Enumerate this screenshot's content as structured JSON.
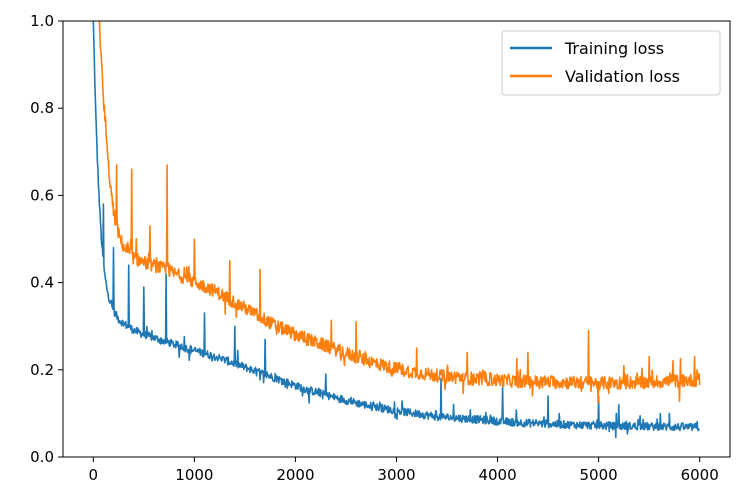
{
  "chart_data": {
    "type": "line",
    "title": "",
    "xlabel": "",
    "ylabel": "",
    "xlim": [
      -300,
      6300
    ],
    "ylim": [
      0.0,
      1.0
    ],
    "xticks": [
      0,
      1000,
      2000,
      3000,
      4000,
      5000,
      6000
    ],
    "xtick_labels": [
      "0",
      "1000",
      "2000",
      "3000",
      "4000",
      "5000",
      "6000"
    ],
    "yticks": [
      0.0,
      0.2,
      0.4,
      0.6,
      0.8,
      1.0
    ],
    "ytick_labels": [
      "0.0",
      "0.2",
      "0.4",
      "0.6",
      "0.8",
      "1.0"
    ],
    "grid": false,
    "legend_position": "top-right",
    "series": [
      {
        "name": "Training loss",
        "color": "#1f77b4",
        "x": [
          0,
          20,
          40,
          60,
          80,
          100,
          130,
          160,
          200,
          250,
          300,
          400,
          500,
          700,
          900,
          1200,
          1500,
          1800,
          2100,
          2400,
          2700,
          3000,
          3400,
          3800,
          4200,
          4600,
          5000,
          5500,
          6000
        ],
        "values": [
          1.0,
          0.82,
          0.68,
          0.58,
          0.5,
          0.44,
          0.39,
          0.36,
          0.335,
          0.315,
          0.305,
          0.29,
          0.28,
          0.265,
          0.25,
          0.23,
          0.205,
          0.18,
          0.155,
          0.135,
          0.118,
          0.105,
          0.092,
          0.085,
          0.078,
          0.074,
          0.071,
          0.069,
          0.067
        ],
        "spikes": [
          {
            "x": 100,
            "y": 0.58
          },
          {
            "x": 200,
            "y": 0.48
          },
          {
            "x": 350,
            "y": 0.44
          },
          {
            "x": 500,
            "y": 0.39
          },
          {
            "x": 720,
            "y": 0.42
          },
          {
            "x": 1100,
            "y": 0.33
          },
          {
            "x": 1400,
            "y": 0.3
          },
          {
            "x": 1700,
            "y": 0.27
          },
          {
            "x": 2300,
            "y": 0.19
          },
          {
            "x": 3440,
            "y": 0.18
          },
          {
            "x": 4050,
            "y": 0.16
          },
          {
            "x": 4500,
            "y": 0.14
          },
          {
            "x": 5000,
            "y": 0.14
          },
          {
            "x": 5200,
            "y": 0.12
          },
          {
            "x": 5700,
            "y": 0.1
          }
        ]
      },
      {
        "name": "Validation loss",
        "color": "#ff7f0e",
        "x": [
          60,
          80,
          100,
          130,
          160,
          200,
          250,
          300,
          400,
          500,
          700,
          900,
          1200,
          1500,
          1800,
          2100,
          2400,
          2700,
          3000,
          3400,
          3800,
          4200,
          4600,
          5000,
          5500,
          6000
        ],
        "values": [
          1.0,
          0.9,
          0.82,
          0.72,
          0.64,
          0.56,
          0.51,
          0.48,
          0.455,
          0.445,
          0.43,
          0.41,
          0.38,
          0.34,
          0.3,
          0.27,
          0.245,
          0.22,
          0.2,
          0.185,
          0.178,
          0.172,
          0.17,
          0.168,
          0.17,
          0.175
        ],
        "spikes": [
          {
            "x": 120,
            "y": 0.78
          },
          {
            "x": 230,
            "y": 0.67
          },
          {
            "x": 380,
            "y": 0.66
          },
          {
            "x": 560,
            "y": 0.53
          },
          {
            "x": 730,
            "y": 0.67
          },
          {
            "x": 1000,
            "y": 0.5
          },
          {
            "x": 1350,
            "y": 0.45
          },
          {
            "x": 1650,
            "y": 0.43
          },
          {
            "x": 2600,
            "y": 0.31
          },
          {
            "x": 3200,
            "y": 0.25
          },
          {
            "x": 3700,
            "y": 0.24
          },
          {
            "x": 4300,
            "y": 0.24
          },
          {
            "x": 4900,
            "y": 0.29
          },
          {
            "x": 5500,
            "y": 0.23
          },
          {
            "x": 5950,
            "y": 0.23
          }
        ]
      }
    ]
  }
}
